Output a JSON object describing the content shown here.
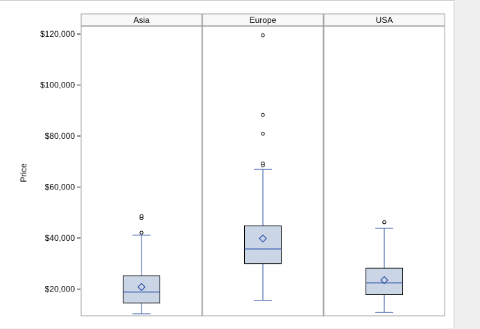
{
  "chart_data": {
    "type": "box",
    "ylabel": "Price",
    "ylim": [
      9500,
      123000
    ],
    "yticks": [
      20000,
      40000,
      60000,
      80000,
      100000,
      120000
    ],
    "ytick_labels": [
      "$20,000",
      "$40,000",
      "$60,000",
      "$80,000",
      "$100,000",
      "$120,000"
    ],
    "grid": false,
    "colors": {
      "box_fill": "#cad5e5",
      "box_stroke": "#000000",
      "median": "#2a4ea6",
      "whisker": "#2a4ea6",
      "mean_marker": "#2a4ea6",
      "outlier": "#000000",
      "panel_border": "#a0a0a0",
      "header_fill": "#f8f8f8"
    },
    "panels": [
      {
        "category": "Asia",
        "whisker_low": 10300,
        "q1": 14500,
        "median": 18800,
        "q3": 25200,
        "whisker_high": 41100,
        "mean": 20800,
        "outliers": [
          42100,
          47800,
          48600
        ]
      },
      {
        "category": "Europe",
        "whisker_low": 15600,
        "q1": 30000,
        "median": 35700,
        "q3": 44800,
        "whisker_high": 66900,
        "mean": 39800,
        "outliers": [
          68500,
          69300,
          80900,
          88300,
          119500
        ]
      },
      {
        "category": "USA",
        "whisker_low": 10800,
        "q1": 17800,
        "median": 22400,
        "q3": 28200,
        "whisker_high": 43800,
        "mean": 23500,
        "outliers": [
          46100,
          46300
        ]
      }
    ]
  }
}
